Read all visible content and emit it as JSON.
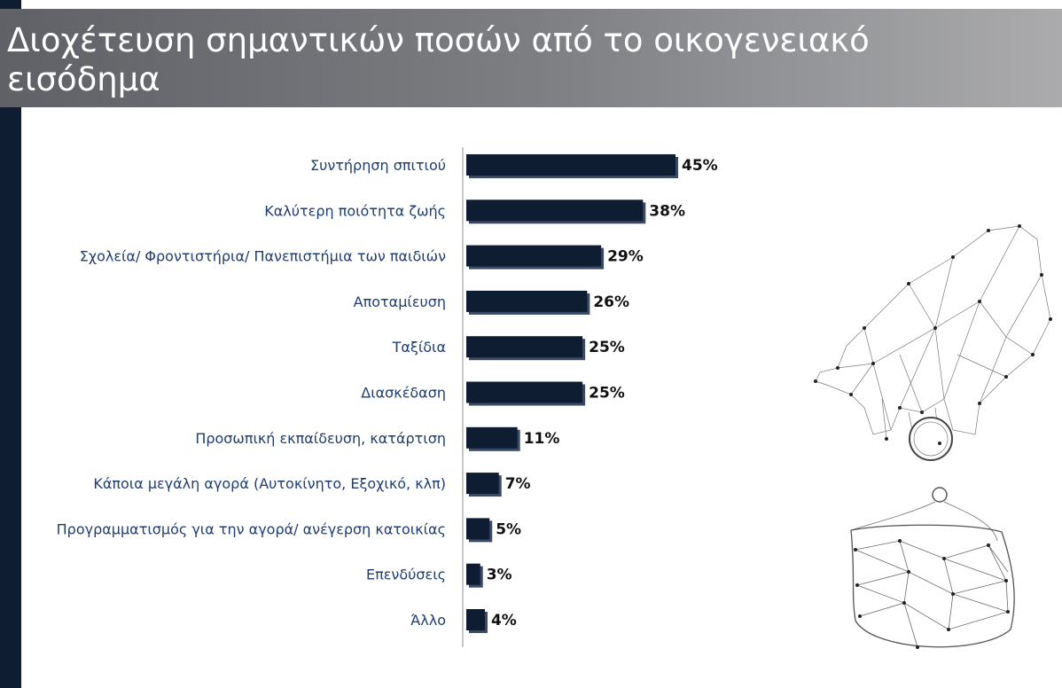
{
  "page": {
    "title": "Διοχέτευση σημαντικών ποσών από το οικογενειακό εισόδημα"
  },
  "colors": {
    "bar": "#0f1d33",
    "bar_shadow": "#3a4a66",
    "label": "#1f3d73",
    "title_bar_left": "#5f6166",
    "title_bar_right": "#ababad",
    "left_stripe": "#0f1d33"
  },
  "chart_data": {
    "type": "bar",
    "orientation": "horizontal",
    "categories": [
      "Συντήρηση σπιτιού",
      "Καλύτερη ποιότητα ζωής",
      "Σχολεία/ Φροντιστήρια/ Πανεπιστήμια των παιδιών",
      "Αποταμίευση",
      "Ταξίδια",
      "Διασκέδαση",
      "Προσωπική εκπαίδευση, κατάρτιση",
      "Κάποια μεγάλη αγορά (Αυτοκίνητο, Εξοχικό, κλπ)",
      "Προγραμματισμός για την αγορά/ ανέγερση κατοικίας",
      "Επενδύσεις",
      "Άλλο"
    ],
    "values": [
      45,
      38,
      29,
      26,
      25,
      25,
      11,
      7,
      5,
      3,
      4
    ],
    "value_labels": [
      "45%",
      "38%",
      "29%",
      "26%",
      "25%",
      "25%",
      "11%",
      "7%",
      "5%",
      "3%",
      "4%"
    ],
    "xlim": [
      0,
      45
    ],
    "grid": false,
    "legend": "none"
  },
  "illustration": {
    "icon": "polygonal-hand-dropping-coin-into-purse-icon"
  }
}
